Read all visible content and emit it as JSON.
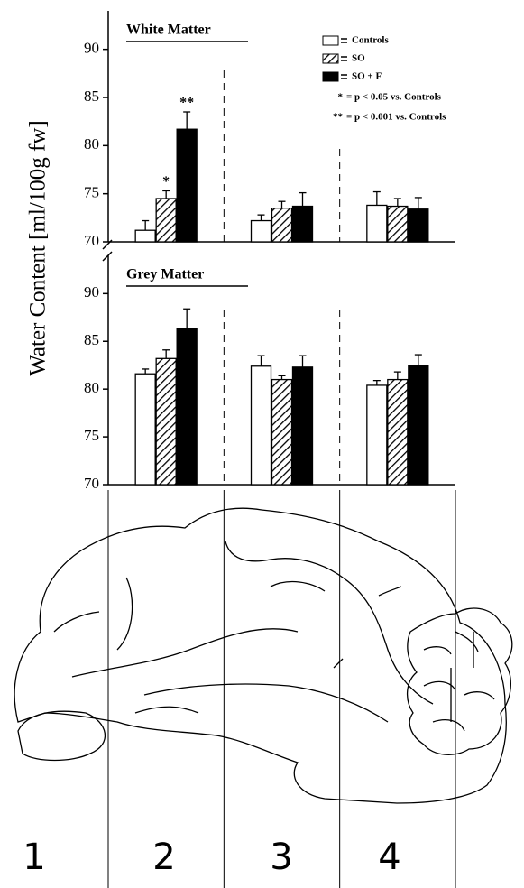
{
  "chart_data": [
    {
      "type": "bar",
      "title": "White Matter",
      "ylabel": "Water Content [ml/100g fw]",
      "categories": [
        null,
        null,
        null
      ],
      "ylim": [
        70,
        94
      ],
      "yticks": [
        70,
        75,
        80,
        85,
        90
      ],
      "series": [
        {
          "name": "Controls",
          "color": "#ffffff",
          "hatch": false,
          "values": [
            71.2,
            72.2,
            73.8
          ],
          "errors": [
            1.0,
            0.6,
            1.4
          ]
        },
        {
          "name": "SO",
          "color": "#ffffff",
          "hatch": true,
          "values": [
            74.5,
            73.5,
            73.7
          ],
          "errors": [
            0.8,
            0.7,
            0.8
          ],
          "significance": [
            "*",
            null,
            null
          ]
        },
        {
          "name": "SO + F",
          "color": "#000000",
          "hatch": false,
          "values": [
            81.7,
            73.7,
            73.4
          ],
          "errors": [
            1.8,
            1.4,
            1.2
          ],
          "significance": [
            "**",
            null,
            null
          ]
        }
      ],
      "notes": [
        {
          "symbol": "*",
          "text": "= p < 0.05 vs. Controls"
        },
        {
          "symbol": "**",
          "text": "= p < 0.001 vs. Controls"
        }
      ]
    },
    {
      "type": "bar",
      "title": "Grey Matter",
      "categories": [
        null,
        null,
        null
      ],
      "ylim": [
        70,
        94
      ],
      "yticks": [
        70,
        75,
        80,
        85,
        90
      ],
      "series": [
        {
          "name": "Controls",
          "color": "#ffffff",
          "hatch": false,
          "values": [
            81.6,
            82.4,
            80.4
          ],
          "errors": [
            0.5,
            1.1,
            0.5
          ]
        },
        {
          "name": "SO",
          "color": "#ffffff",
          "hatch": true,
          "values": [
            83.2,
            81.0,
            81.0
          ],
          "errors": [
            0.9,
            0.4,
            0.8
          ]
        },
        {
          "name": "SO + F",
          "color": "#000000",
          "hatch": false,
          "values": [
            86.3,
            82.3,
            82.5
          ],
          "errors": [
            2.1,
            1.2,
            1.1
          ]
        }
      ]
    }
  ],
  "brain_regions": [
    "1",
    "2",
    "3",
    "4"
  ]
}
